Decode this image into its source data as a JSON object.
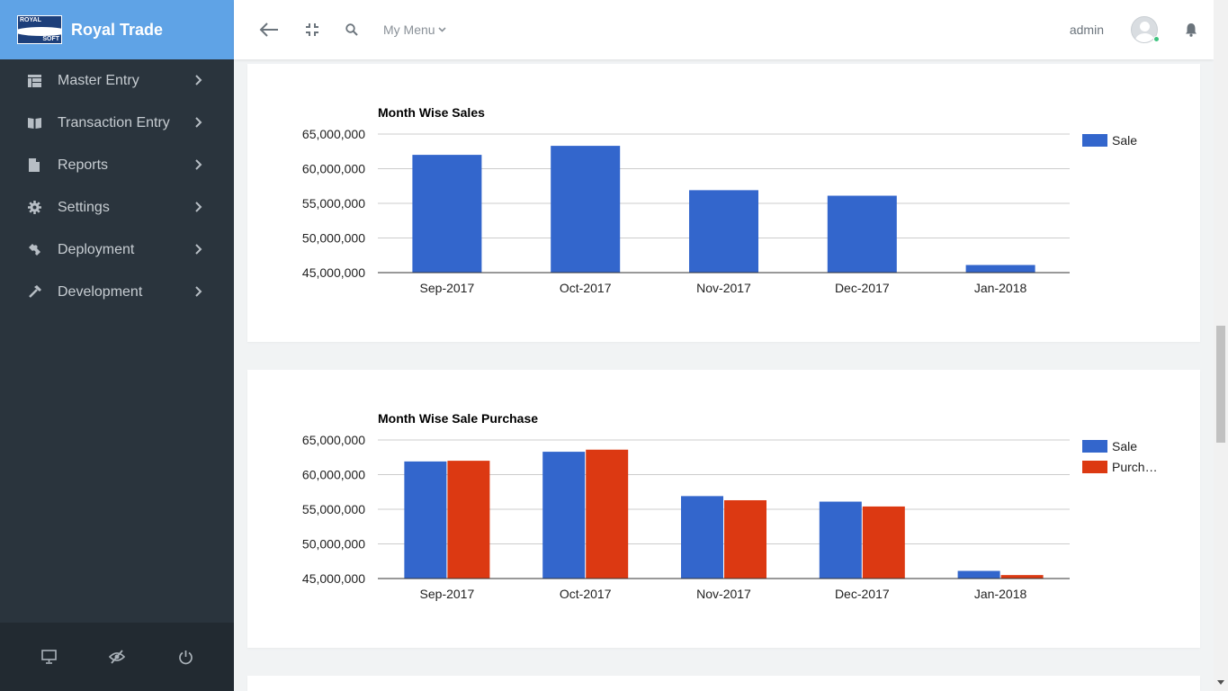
{
  "brand": {
    "name": "Royal Trade",
    "logo_top": "ROYAL",
    "logo_bottom": "SOFT"
  },
  "sidebar": {
    "items": [
      {
        "label": "Master Entry",
        "icon": "table-icon"
      },
      {
        "label": "Transaction Entry",
        "icon": "book-icon"
      },
      {
        "label": "Reports",
        "icon": "file-icon"
      },
      {
        "label": "Settings",
        "icon": "gear-icon"
      },
      {
        "label": "Deployment",
        "icon": "puzzle-icon"
      },
      {
        "label": "Development",
        "icon": "hammer-icon"
      }
    ],
    "footer_icons": [
      "monitor-icon",
      "eye-slash-icon",
      "power-icon"
    ]
  },
  "topbar": {
    "my_menu": "My Menu",
    "user": "admin"
  },
  "colors": {
    "sale": "#3366cc",
    "purchase": "#dc3912",
    "sidebar": "#2a343d",
    "brand": "#5fa3e6"
  },
  "chart_data": [
    {
      "type": "bar",
      "title": "Month Wise Sales",
      "categories": [
        "Sep-2017",
        "Oct-2017",
        "Nov-2017",
        "Dec-2017",
        "Jan-2018"
      ],
      "series": [
        {
          "name": "Sale",
          "values": [
            62000000,
            63300000,
            56900000,
            56100000,
            46100000
          ]
        }
      ],
      "ylim": [
        45000000,
        65000000
      ],
      "yticks": [
        "65,000,000",
        "60,000,000",
        "55,000,000",
        "50,000,000",
        "45,000,000"
      ],
      "ytick_values": [
        65000000,
        60000000,
        55000000,
        50000000,
        45000000
      ],
      "legend": "right",
      "grid": true
    },
    {
      "type": "bar",
      "title": "Month Wise Sale Purchase",
      "categories": [
        "Sep-2017",
        "Oct-2017",
        "Nov-2017",
        "Dec-2017",
        "Jan-2018"
      ],
      "series": [
        {
          "name": "Sale",
          "values": [
            61900000,
            63300000,
            56900000,
            56100000,
            46100000
          ]
        },
        {
          "name": "Purch…",
          "values": [
            62000000,
            63600000,
            56300000,
            55400000,
            45500000
          ]
        }
      ],
      "ylim": [
        45000000,
        65000000
      ],
      "yticks": [
        "65,000,000",
        "60,000,000",
        "55,000,000",
        "50,000,000",
        "45,000,000"
      ],
      "ytick_values": [
        65000000,
        60000000,
        55000000,
        50000000,
        45000000
      ],
      "legend": "right",
      "grid": true
    }
  ]
}
